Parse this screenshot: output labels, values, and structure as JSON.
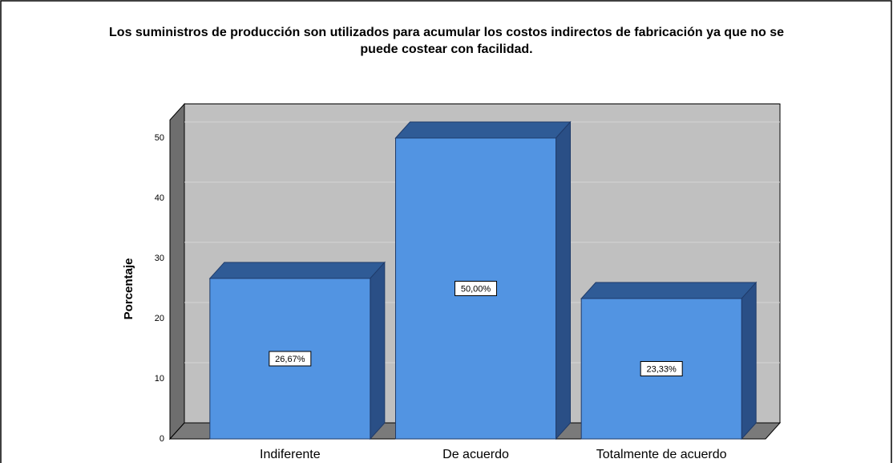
{
  "chart_data": {
    "type": "bar3d",
    "title": "Los suministros de producción son utilizados para acumular los costos indirectos de fabricación ya que no se",
    "title_line2": "puede costear con facilidad.",
    "y_label": "Porcentaje",
    "categories": [
      "Indiferente",
      "De acuerdo",
      "Totalmente de acuerdo"
    ],
    "values": [
      26.67,
      50.0,
      23.33
    ],
    "value_labels": [
      "26,67%",
      "50,00%",
      "23,33%"
    ],
    "color": "#5294e2",
    "ylim": [
      0,
      53
    ],
    "yticks": [
      0,
      10,
      20,
      30,
      40,
      50
    ],
    "grid": true
  }
}
